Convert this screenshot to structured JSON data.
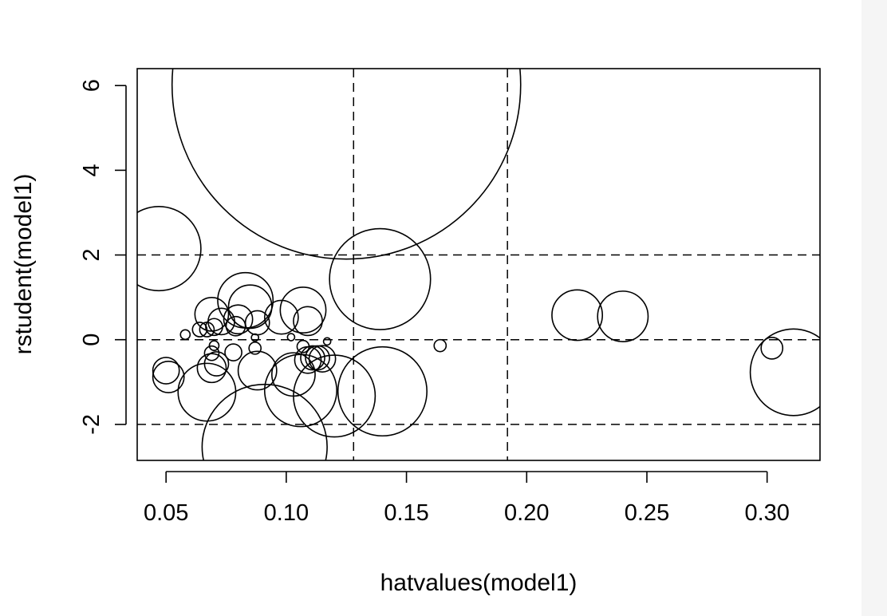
{
  "chart_data": {
    "type": "scatter",
    "title": "",
    "xlabel": "hatvalues(model1)",
    "ylabel": "rstudent(model1)",
    "xlim": [
      0.038,
      0.322
    ],
    "ylim": [
      -2.85,
      6.4
    ],
    "x_ticks": [
      0.05,
      0.1,
      0.15,
      0.2,
      0.25,
      0.3
    ],
    "x_tick_labels": [
      "0.05",
      "0.10",
      "0.15",
      "0.20",
      "0.25",
      "0.30"
    ],
    "y_ticks": [
      -2,
      0,
      2,
      4,
      6
    ],
    "y_tick_labels": [
      "-2",
      "0",
      "2",
      "4",
      "6"
    ],
    "vertical_reference_lines": [
      0.128,
      0.192
    ],
    "horizontal_reference_lines": [
      -2,
      0,
      2
    ],
    "point_size_meaning": "circle radius proportional to influence",
    "grid": false,
    "points": [
      {
        "x": 0.125,
        "y": 6.02,
        "size": 0.145
      },
      {
        "x": 0.047,
        "y": 2.15,
        "size": 0.035
      },
      {
        "x": 0.139,
        "y": 1.43,
        "size": 0.042
      },
      {
        "x": 0.083,
        "y": 0.93,
        "size": 0.023
      },
      {
        "x": 0.085,
        "y": 0.78,
        "size": 0.018
      },
      {
        "x": 0.107,
        "y": 0.7,
        "size": 0.019
      },
      {
        "x": 0.069,
        "y": 0.6,
        "size": 0.014
      },
      {
        "x": 0.098,
        "y": 0.53,
        "size": 0.014
      },
      {
        "x": 0.08,
        "y": 0.48,
        "size": 0.012
      },
      {
        "x": 0.109,
        "y": 0.44,
        "size": 0.012
      },
      {
        "x": 0.073,
        "y": 0.43,
        "size": 0.011
      },
      {
        "x": 0.088,
        "y": 0.4,
        "size": 0.01
      },
      {
        "x": 0.079,
        "y": 0.32,
        "size": 0.008
      },
      {
        "x": 0.07,
        "y": 0.3,
        "size": 0.007
      },
      {
        "x": 0.067,
        "y": 0.24,
        "size": 0.006
      },
      {
        "x": 0.064,
        "y": 0.24,
        "size": 0.006
      },
      {
        "x": 0.058,
        "y": 0.12,
        "size": 0.004
      },
      {
        "x": 0.087,
        "y": 0.05,
        "size": 0.003
      },
      {
        "x": 0.102,
        "y": 0.06,
        "size": 0.003
      },
      {
        "x": 0.117,
        "y": -0.04,
        "size": 0.003
      },
      {
        "x": 0.107,
        "y": -0.16,
        "size": 0.005
      },
      {
        "x": 0.087,
        "y": -0.2,
        "size": 0.005
      },
      {
        "x": 0.07,
        "y": -0.14,
        "size": 0.004
      },
      {
        "x": 0.164,
        "y": -0.14,
        "size": 0.005
      },
      {
        "x": 0.069,
        "y": -0.32,
        "size": 0.006
      },
      {
        "x": 0.078,
        "y": -0.3,
        "size": 0.007
      },
      {
        "x": 0.111,
        "y": -0.43,
        "size": 0.01
      },
      {
        "x": 0.113,
        "y": -0.43,
        "size": 0.01
      },
      {
        "x": 0.115,
        "y": -0.45,
        "size": 0.011
      },
      {
        "x": 0.109,
        "y": -0.48,
        "size": 0.011
      },
      {
        "x": 0.071,
        "y": -0.57,
        "size": 0.01
      },
      {
        "x": 0.069,
        "y": -0.67,
        "size": 0.012
      },
      {
        "x": 0.05,
        "y": -0.73,
        "size": 0.011
      },
      {
        "x": 0.088,
        "y": -0.73,
        "size": 0.016
      },
      {
        "x": 0.103,
        "y": -0.82,
        "size": 0.018
      },
      {
        "x": 0.051,
        "y": -0.88,
        "size": 0.013
      },
      {
        "x": 0.067,
        "y": -1.24,
        "size": 0.024
      },
      {
        "x": 0.106,
        "y": -1.2,
        "size": 0.03
      },
      {
        "x": 0.12,
        "y": -1.33,
        "size": 0.034
      },
      {
        "x": 0.14,
        "y": -1.22,
        "size": 0.037
      },
      {
        "x": 0.091,
        "y": -2.53,
        "size": 0.052
      },
      {
        "x": 0.221,
        "y": 0.58,
        "size": 0.021
      },
      {
        "x": 0.24,
        "y": 0.55,
        "size": 0.021
      },
      {
        "x": 0.302,
        "y": -0.2,
        "size": 0.009
      },
      {
        "x": 0.311,
        "y": -0.77,
        "size": 0.036
      }
    ]
  }
}
